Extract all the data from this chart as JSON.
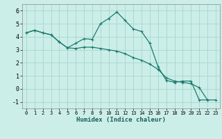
{
  "title": "",
  "xlabel": "Humidex (Indice chaleur)",
  "xlim": [
    -0.5,
    23.5
  ],
  "ylim": [
    -1.5,
    6.5
  ],
  "yticks": [
    -1,
    0,
    1,
    2,
    3,
    4,
    5,
    6
  ],
  "xticks": [
    0,
    1,
    2,
    3,
    4,
    5,
    6,
    7,
    8,
    9,
    10,
    11,
    12,
    13,
    14,
    15,
    16,
    17,
    18,
    19,
    20,
    21,
    22,
    23
  ],
  "background_color": "#cceee8",
  "grid_color": "#aad8d2",
  "line_color": "#1a7a6e",
  "line1_x": [
    0,
    1,
    2,
    3,
    4,
    5,
    6,
    7,
    8,
    9,
    10,
    11,
    12,
    13,
    14,
    15,
    16,
    17,
    18,
    19,
    20,
    21,
    22,
    23
  ],
  "line1_y": [
    4.3,
    4.5,
    4.3,
    4.15,
    3.6,
    3.15,
    3.5,
    3.85,
    3.8,
    5.0,
    5.4,
    5.9,
    5.25,
    4.6,
    4.4,
    3.5,
    1.7,
    0.65,
    0.5,
    0.6,
    0.6,
    -0.85,
    -0.85,
    null
  ],
  "line2_x": [
    0,
    1,
    2,
    3,
    4,
    5,
    6,
    7,
    8,
    9,
    10,
    11,
    12,
    13,
    14,
    15,
    16,
    17,
    18,
    19,
    20,
    21,
    22,
    23
  ],
  "line2_y": [
    4.3,
    4.5,
    4.3,
    4.15,
    3.6,
    3.15,
    3.1,
    3.2,
    3.2,
    3.1,
    3.0,
    2.9,
    2.7,
    2.4,
    2.2,
    1.9,
    1.5,
    0.85,
    0.6,
    0.5,
    0.4,
    0.1,
    -0.85,
    -0.85
  ]
}
